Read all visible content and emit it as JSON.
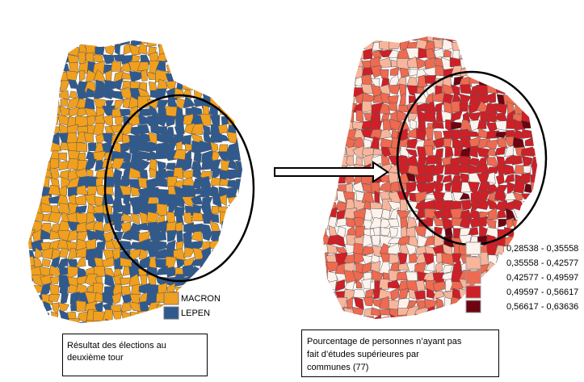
{
  "left_map": {
    "legend": [
      {
        "label": "MACRON",
        "color": "#f0a01e"
      },
      {
        "label": "LEPEN",
        "color": "#2f5a8f"
      }
    ],
    "caption": [
      "Résultat des élections au",
      "deuxième tour"
    ]
  },
  "right_map": {
    "legend": [
      {
        "label": "0,28538 - 0,35558",
        "color": "#fdf2ec"
      },
      {
        "label": "0,35558 - 0,42577",
        "color": "#f7b59c"
      },
      {
        "label": "0,42577 - 0,49597",
        "color": "#ee6a50"
      },
      {
        "label": "0,49597 - 0,56617",
        "color": "#cf1f27"
      },
      {
        "label": "0,56617 - 0,63636",
        "color": "#6e0410"
      }
    ],
    "caption": [
      "Pourcentage de personnes n’ayant pas",
      "fait d’études supérieures par",
      "communes (77)"
    ]
  }
}
